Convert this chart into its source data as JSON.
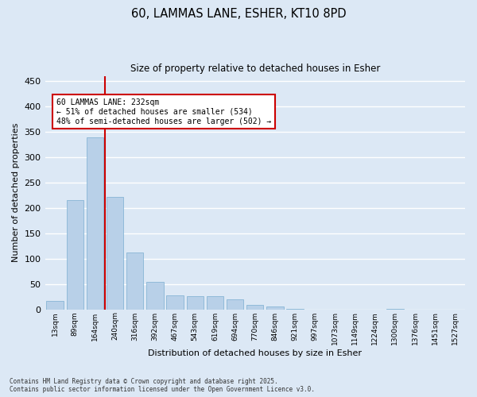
{
  "title_line1": "60, LAMMAS LANE, ESHER, KT10 8PD",
  "title_line2": "Size of property relative to detached houses in Esher",
  "xlabel": "Distribution of detached houses by size in Esher",
  "ylabel": "Number of detached properties",
  "bar_color": "#b8d0e8",
  "bar_edge_color": "#7aaed0",
  "background_color": "#dce8f5",
  "grid_color": "#ffffff",
  "annotation_box_color": "#cc0000",
  "vline_color": "#cc0000",
  "fig_background": "#dce8f5",
  "categories": [
    "13sqm",
    "89sqm",
    "164sqm",
    "240sqm",
    "316sqm",
    "392sqm",
    "467sqm",
    "543sqm",
    "619sqm",
    "694sqm",
    "770sqm",
    "846sqm",
    "921sqm",
    "997sqm",
    "1073sqm",
    "1149sqm",
    "1224sqm",
    "1300sqm",
    "1376sqm",
    "1451sqm",
    "1527sqm"
  ],
  "values": [
    17,
    215,
    339,
    222,
    112,
    54,
    27,
    26,
    26,
    19,
    8,
    6,
    1,
    0,
    0,
    0,
    0,
    1,
    0,
    0,
    0
  ],
  "vline_bin": 2.5,
  "annotation_line1": "60 LAMMAS LANE: 232sqm",
  "annotation_line2": "← 51% of detached houses are smaller (534)",
  "annotation_line3": "48% of semi-detached houses are larger (502) →",
  "ylim": [
    0,
    460
  ],
  "yticks": [
    0,
    50,
    100,
    150,
    200,
    250,
    300,
    350,
    400,
    450
  ],
  "footer_line1": "Contains HM Land Registry data © Crown copyright and database right 2025.",
  "footer_line2": "Contains public sector information licensed under the Open Government Licence v3.0."
}
